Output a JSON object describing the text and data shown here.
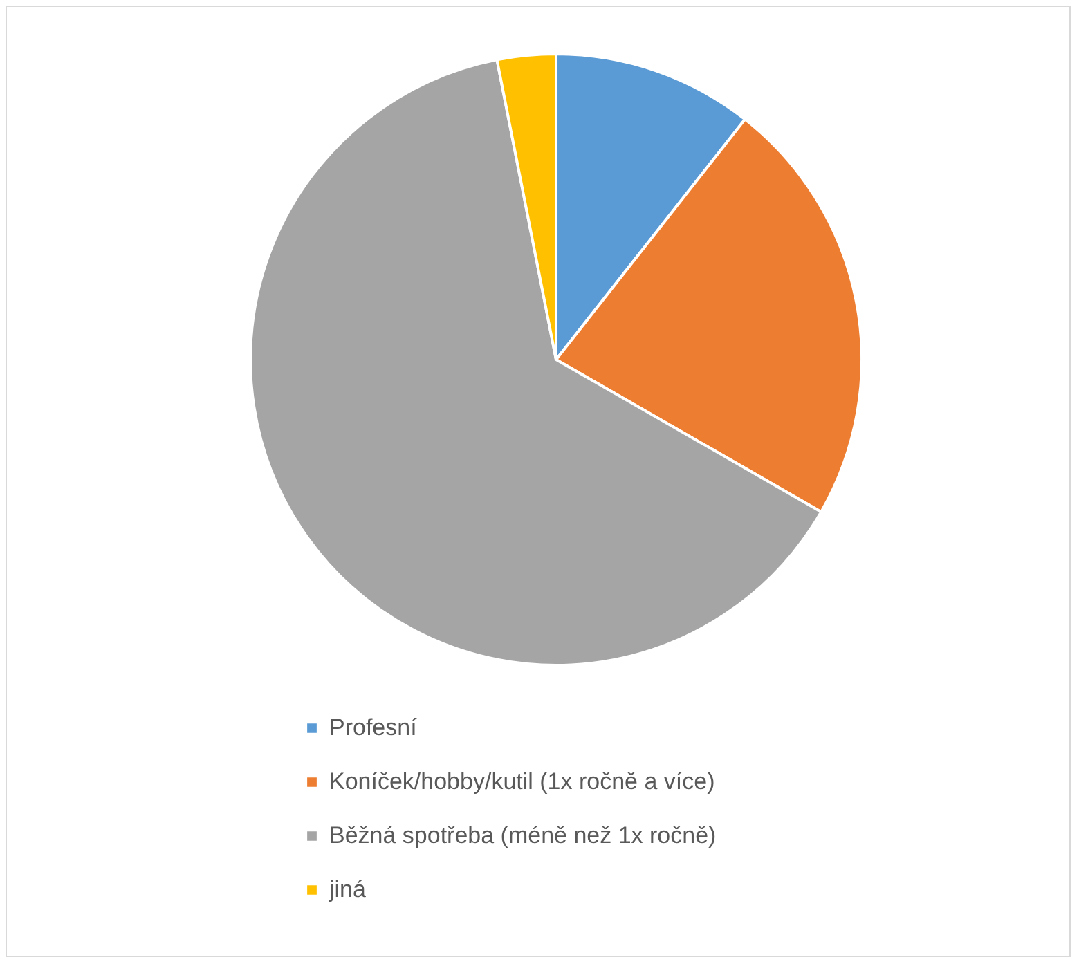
{
  "chart_data": {
    "type": "pie",
    "categories": [
      "Profesní",
      "Koníček/hobby/kutil (1x ročně a více)",
      "Běžná spotřeba (méně než 1x ročně)",
      "jiná"
    ],
    "values": [
      10.6,
      22.7,
      63.6,
      3.1
    ],
    "colors": [
      "#5b9bd5",
      "#ed7d31",
      "#a5a5a5",
      "#ffc000"
    ],
    "legend": "bottom"
  }
}
